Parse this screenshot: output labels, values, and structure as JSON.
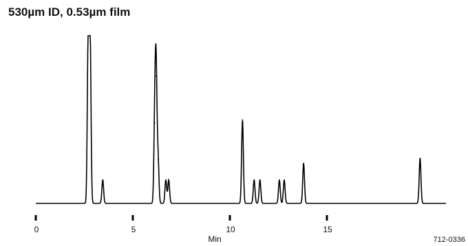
{
  "title": "530µm ID, 0.53µm film",
  "figure_code": "712-0336",
  "chart_data": {
    "type": "line",
    "title": "530µm ID, 0.53µm film",
    "xlabel": "Min",
    "ylabel": "",
    "xlim": [
      0,
      21
    ],
    "ylim": [
      0,
      100
    ],
    "xticks": [
      0,
      5,
      10,
      15
    ],
    "grid": false,
    "line_color": "#000000",
    "series": [
      {
        "peaks": [
          {
            "t": 2.7,
            "height": 100
          },
          {
            "t": 2.8,
            "height": 100
          },
          {
            "t": 3.45,
            "height": 14
          },
          {
            "t": 6.13,
            "height": 48
          },
          {
            "t": 6.2,
            "height": 76
          },
          {
            "t": 6.3,
            "height": 26
          },
          {
            "t": 6.7,
            "height": 14
          },
          {
            "t": 6.85,
            "height": 14
          },
          {
            "t": 10.65,
            "height": 50
          },
          {
            "t": 11.25,
            "height": 14
          },
          {
            "t": 11.55,
            "height": 14
          },
          {
            "t": 12.55,
            "height": 14
          },
          {
            "t": 12.8,
            "height": 14
          },
          {
            "t": 13.8,
            "height": 24
          },
          {
            "t": 19.8,
            "height": 27
          }
        ]
      }
    ]
  }
}
